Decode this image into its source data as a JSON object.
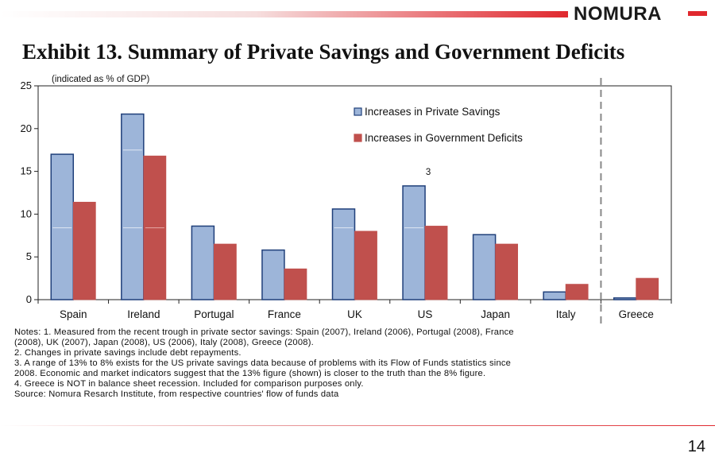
{
  "header": {
    "brand": "NOMURA"
  },
  "title": "Exhibit 13.  Summary of Private Savings and Government Deficits",
  "chart_data": {
    "type": "bar",
    "subtitle": "(indicated as % of GDP)",
    "categories": [
      "Spain",
      "Ireland",
      "Portugal",
      "France",
      "UK",
      "US",
      "Japan",
      "Italy",
      "Greece"
    ],
    "series": [
      {
        "name": "Increases in Private Savings",
        "color": "#9db5d9",
        "values": [
          17.0,
          21.7,
          8.6,
          5.8,
          10.6,
          13.3,
          7.6,
          0.9,
          0.2
        ]
      },
      {
        "name": "Increases in Government Deficits",
        "color": "#c0504d",
        "values": [
          11.4,
          16.8,
          6.5,
          3.6,
          8.0,
          8.6,
          6.5,
          1.8,
          2.5
        ]
      }
    ],
    "ylim": [
      0,
      25
    ],
    "yticks": [
      0,
      5,
      10,
      15,
      20,
      25
    ],
    "xlabel": "",
    "ylabel": "",
    "annotation": {
      "text": "3",
      "category": "US"
    },
    "us_savings_alt_value": 8.4,
    "separator_after": "Italy",
    "legend_position": "top-right",
    "grid": false
  },
  "notes": [
    "Notes: 1. Measured from the recent trough in private sector savings: Spain (2007), Ireland  (2006), Portugal (2008), France",
    "(2008), UK (2007), Japan (2008), US (2006), Italy (2008), Greece  (2008).",
    "2. Changes in private savings include debt repayments.",
    "3. A range of 13% to 8% exists for the US private savings data because of problems with its Flow of Funds statistics since",
    "2008. Economic and market indicators suggest that the 13% figure (shown) is closer to the truth than the 8% figure.",
    "4. Greece is NOT in balance sheet recession. Included for comparison purposes only.",
    "Source: Nomura Resarch Institute, from respective countries' flow of funds data"
  ],
  "page_number": "14"
}
